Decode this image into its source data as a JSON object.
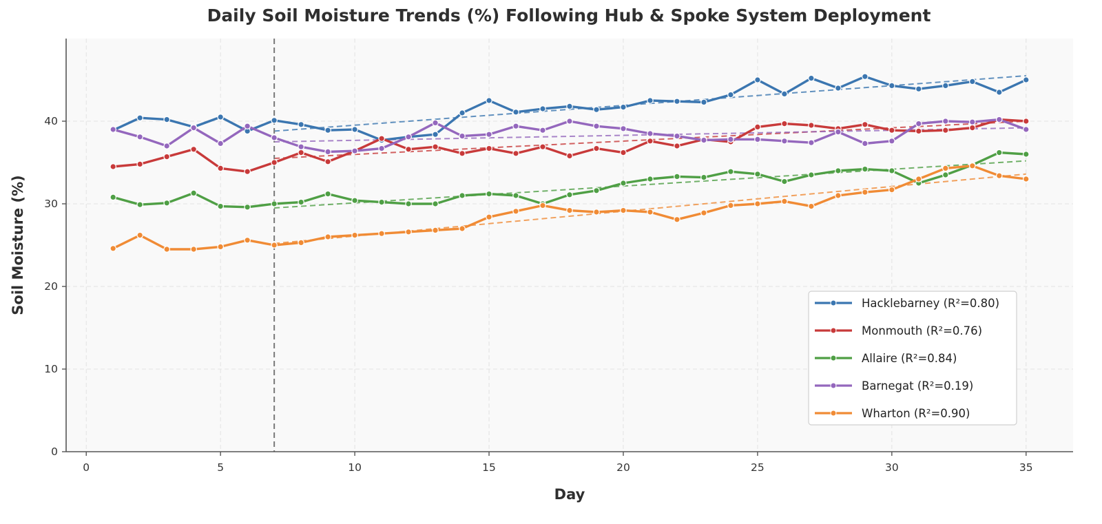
{
  "chart_data": {
    "type": "line",
    "title": "Daily Soil Moisture Trends (%) Following Hub & Spoke System Deployment",
    "xlabel": "Day",
    "ylabel": "Soil Moisture (%)",
    "xlim": [
      -0.75,
      36.75
    ],
    "ylim": [
      0,
      50
    ],
    "xticks": [
      0,
      5,
      10,
      15,
      20,
      25,
      30,
      35
    ],
    "yticks": [
      0,
      10,
      20,
      30,
      40
    ],
    "grid": true,
    "legend_position": "lower-right",
    "deployment_day": 7,
    "x": [
      1,
      2,
      3,
      4,
      5,
      6,
      7,
      8,
      9,
      10,
      11,
      12,
      13,
      14,
      15,
      16,
      17,
      18,
      19,
      20,
      21,
      22,
      23,
      24,
      25,
      26,
      27,
      28,
      29,
      30,
      31,
      32,
      33,
      34,
      35
    ],
    "series": [
      {
        "name": "Hacklebarney (R²=0.80)",
        "color": "#3b76b0",
        "values": [
          38.9,
          40.4,
          40.2,
          39.3,
          40.5,
          38.8,
          40.1,
          39.6,
          38.9,
          39.0,
          37.7,
          38.1,
          38.4,
          41.0,
          42.5,
          41.1,
          41.5,
          41.8,
          41.4,
          41.7,
          42.5,
          42.4,
          42.3,
          43.2,
          45.0,
          43.3,
          45.2,
          44.0,
          45.4,
          44.3,
          43.9,
          44.3,
          44.8,
          43.5,
          45.0
        ],
        "trend": [
          7,
          38.8,
          35,
          45.5
        ]
      },
      {
        "name": "Monmouth (R²=0.76)",
        "color": "#c83a3a",
        "values": [
          34.5,
          34.8,
          35.7,
          36.6,
          34.3,
          33.9,
          35.0,
          36.2,
          35.1,
          36.4,
          37.9,
          36.6,
          36.9,
          36.1,
          36.7,
          36.1,
          36.9,
          35.8,
          36.7,
          36.2,
          37.6,
          37.0,
          37.8,
          37.5,
          39.3,
          39.7,
          39.5,
          39.1,
          39.6,
          38.9,
          38.8,
          38.9,
          39.2,
          40.2,
          40.0
        ],
        "trend": [
          7,
          35.5,
          35,
          40.0
        ]
      },
      {
        "name": "Allaire (R²=0.84)",
        "color": "#4f9f45",
        "values": [
          30.8,
          29.9,
          30.1,
          31.3,
          29.7,
          29.6,
          30.0,
          30.2,
          31.2,
          30.4,
          30.2,
          30.0,
          30.0,
          31.0,
          31.2,
          31.0,
          30.0,
          31.1,
          31.6,
          32.5,
          33.0,
          33.3,
          33.2,
          33.9,
          33.6,
          32.7,
          33.5,
          34.0,
          34.2,
          34.0,
          32.5,
          33.5,
          34.7,
          36.2,
          36.0
        ],
        "trend": [
          7,
          29.5,
          35,
          35.2
        ]
      },
      {
        "name": "Barnegat (R²=0.19)",
        "color": "#9467bd",
        "values": [
          39.0,
          38.1,
          37.0,
          39.2,
          37.3,
          39.4,
          38.0,
          36.9,
          36.3,
          36.4,
          36.7,
          38.1,
          39.8,
          38.2,
          38.4,
          39.4,
          38.9,
          40.0,
          39.4,
          39.1,
          38.5,
          38.2,
          37.7,
          37.8,
          37.8,
          37.6,
          37.4,
          38.7,
          37.3,
          37.6,
          39.7,
          40.0,
          39.9,
          40.2,
          39.0
        ],
        "trend": [
          7,
          37.5,
          35,
          39.2
        ]
      },
      {
        "name": "Wharton (R²=0.90)",
        "color": "#f08b35",
        "values": [
          24.6,
          26.2,
          24.5,
          24.5,
          24.8,
          25.6,
          25.0,
          25.3,
          26.0,
          26.2,
          26.4,
          26.6,
          26.8,
          27.0,
          28.4,
          29.1,
          29.8,
          29.2,
          29.0,
          29.2,
          29.0,
          28.1,
          28.9,
          29.8,
          30.0,
          30.3,
          29.7,
          31.0,
          31.4,
          31.7,
          33.0,
          34.3,
          34.6,
          33.4,
          33.0
        ],
        "trend": [
          7,
          25.2,
          35,
          33.6
        ]
      }
    ]
  }
}
